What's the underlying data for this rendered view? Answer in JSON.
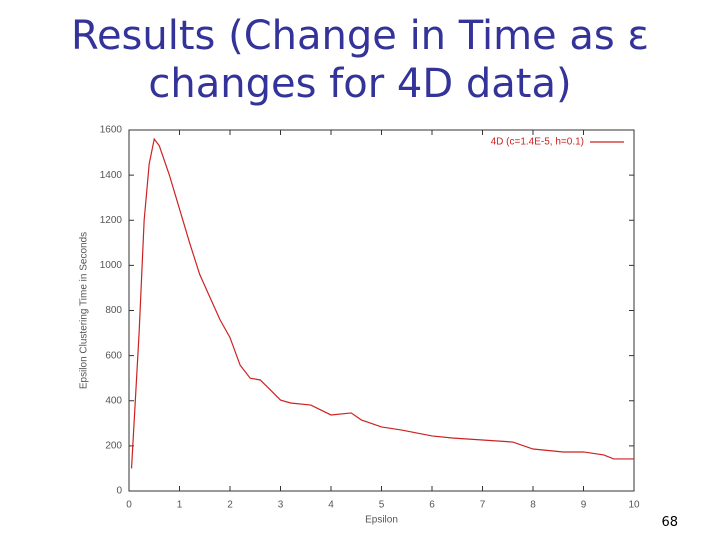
{
  "title_lines": [
    "Results (Change in Time as ε",
    "changes for 4D data)"
  ],
  "page_number": "68",
  "chart_data": {
    "type": "line",
    "xlabel": "Epsilon",
    "ylabel": "Epsilon Clustering Time in Seconds",
    "x": [
      0.05,
      0.1,
      0.2,
      0.3,
      0.4,
      0.5,
      0.6,
      0.8,
      1.0,
      1.2,
      1.4,
      1.6,
      1.8,
      2.0,
      2.2,
      2.4,
      2.6,
      2.8,
      3.0,
      3.2,
      3.6,
      4.0,
      4.4,
      4.6,
      5.0,
      5.4,
      6.0,
      6.4,
      7.0,
      7.6,
      8.0,
      8.6,
      9.0,
      9.4,
      9.6,
      10.0
    ],
    "series": [
      {
        "name": "4D (c=1.4E-5, h=0.1)",
        "color": "#cc2222",
        "values": [
          100,
          300,
          700,
          1200,
          1450,
          1560,
          1530,
          1400,
          1250,
          1100,
          960,
          860,
          760,
          680,
          558,
          500,
          492,
          448,
          403,
          390,
          381,
          337,
          346,
          315,
          284,
          270,
          244,
          235,
          226,
          217,
          186,
          173,
          173,
          160,
          142,
          142
        ]
      }
    ],
    "xlim": [
      0,
      10
    ],
    "xticks": [
      0,
      1,
      2,
      3,
      4,
      5,
      6,
      7,
      8,
      9,
      10
    ],
    "ylim": [
      0,
      1600
    ],
    "yticks": [
      0,
      200,
      400,
      600,
      800,
      1000,
      1200,
      1400,
      1600
    ],
    "legend": "upper right"
  }
}
